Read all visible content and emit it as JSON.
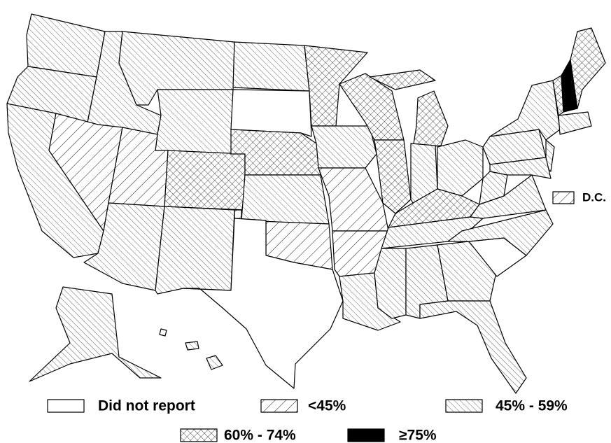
{
  "legend": [
    {
      "label": "Did not report"
    },
    {
      "label": "<45%"
    },
    {
      "label": "45% - 59%"
    },
    {
      "label": "60% - 74%"
    },
    {
      "label": "≥75%"
    }
  ],
  "dc_label": "D.C.",
  "regions": [
    2,
    2,
    2,
    2,
    1,
    2,
    2,
    1,
    2,
    3,
    2,
    2,
    0,
    3,
    2,
    1,
    0,
    3,
    2,
    1,
    1,
    2,
    3,
    3,
    3,
    3,
    2,
    2,
    3,
    2,
    2,
    2,
    2,
    2,
    0,
    2,
    2,
    2,
    2,
    2,
    2,
    2,
    2,
    3,
    4,
    3,
    2,
    2,
    0,
    2
  ]
}
